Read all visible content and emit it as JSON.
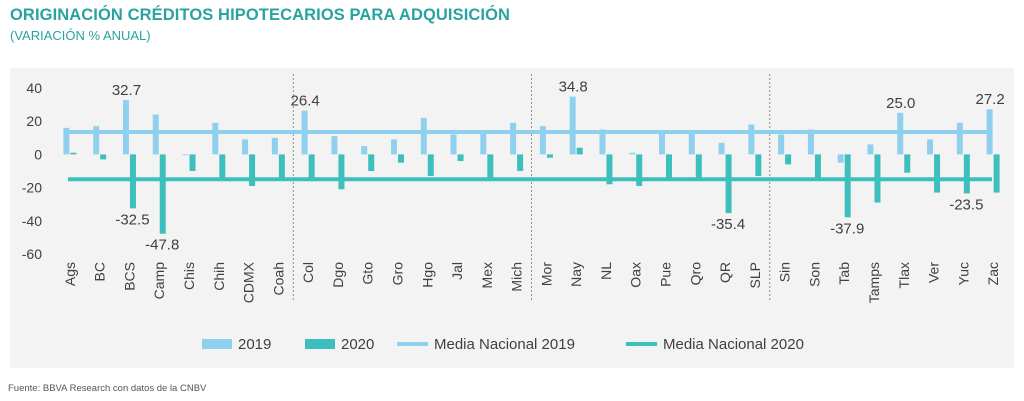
{
  "title": "ORIGINACIÓN CRÉDITOS HIPOTECARIOS PARA ADQUISICIÓN",
  "subtitle": "(VARIACIÓN % ANUAL)",
  "source": "Fuente: BBVA Research con datos de la CNBV",
  "chart_data": {
    "type": "bar",
    "categories": [
      "Ags",
      "BC",
      "BCS",
      "Camp",
      "Chis",
      "Chih",
      "CDMX",
      "Coah",
      "Col",
      "Dgo",
      "Gto",
      "Gro",
      "Hgo",
      "Jal",
      "Mex",
      "Mich",
      "Mor",
      "Nay",
      "NL",
      "Oax",
      "Pue",
      "Qro",
      "QR",
      "SLP",
      "Sin",
      "Son",
      "Tab",
      "Tamps",
      "Tlax",
      "Ver",
      "Yuc",
      "Zac"
    ],
    "series": [
      {
        "name": "2019",
        "color": "#8fd0ee",
        "values": [
          16,
          17,
          32.7,
          24,
          0,
          19,
          9,
          10,
          26.4,
          11,
          5,
          9,
          22,
          12,
          13,
          19,
          17,
          34.8,
          15,
          1,
          14,
          14,
          7,
          18,
          12,
          15,
          -5,
          6,
          25.0,
          9,
          19,
          27.2
        ]
      },
      {
        "name": "2020",
        "color": "#3dbfbd",
        "values": [
          1,
          -3,
          -32.5,
          -47.8,
          -10,
          -16,
          -19,
          -16,
          -14,
          -21,
          -10,
          -5,
          -13,
          -4,
          -16,
          -10,
          -2,
          4,
          -18,
          -19,
          -16,
          -16,
          -35.4,
          -13,
          -6,
          -16,
          -37.9,
          -29,
          -11,
          -23,
          -23.5,
          -23
        ]
      }
    ],
    "reference_lines": [
      {
        "name": "Media Nacional 2019",
        "value": 13.5,
        "color": "#8fd0ee"
      },
      {
        "name": "Media Nacional 2020",
        "value": -15,
        "color": "#3dbfbd"
      }
    ],
    "data_labels": [
      {
        "category": "BCS",
        "series": "2019",
        "text": "32.7"
      },
      {
        "category": "BCS",
        "series": "2020",
        "text": "-32.5"
      },
      {
        "category": "Camp",
        "series": "2020",
        "text": "-47.8"
      },
      {
        "category": "Col",
        "series": "2019",
        "text": "26.4"
      },
      {
        "category": "Nay",
        "series": "2019",
        "text": "34.8"
      },
      {
        "category": "QR",
        "series": "2020",
        "text": "-35.4"
      },
      {
        "category": "Tab",
        "series": "2020",
        "text": "-37.9"
      },
      {
        "category": "Tlax",
        "series": "2019",
        "text": "25.0"
      },
      {
        "category": "Yuc",
        "series": "2020",
        "text": "-23.5"
      },
      {
        "category": "Zac",
        "series": "2019",
        "text": "27.2"
      }
    ],
    "separators_after": [
      "Coah",
      "Mich",
      "SLP"
    ],
    "ylim": [
      -60,
      40
    ],
    "yticks": [
      40,
      20,
      0,
      -20,
      -40,
      -60
    ],
    "legend": "bottom",
    "grid": false,
    "xlabel": "",
    "ylabel": ""
  }
}
